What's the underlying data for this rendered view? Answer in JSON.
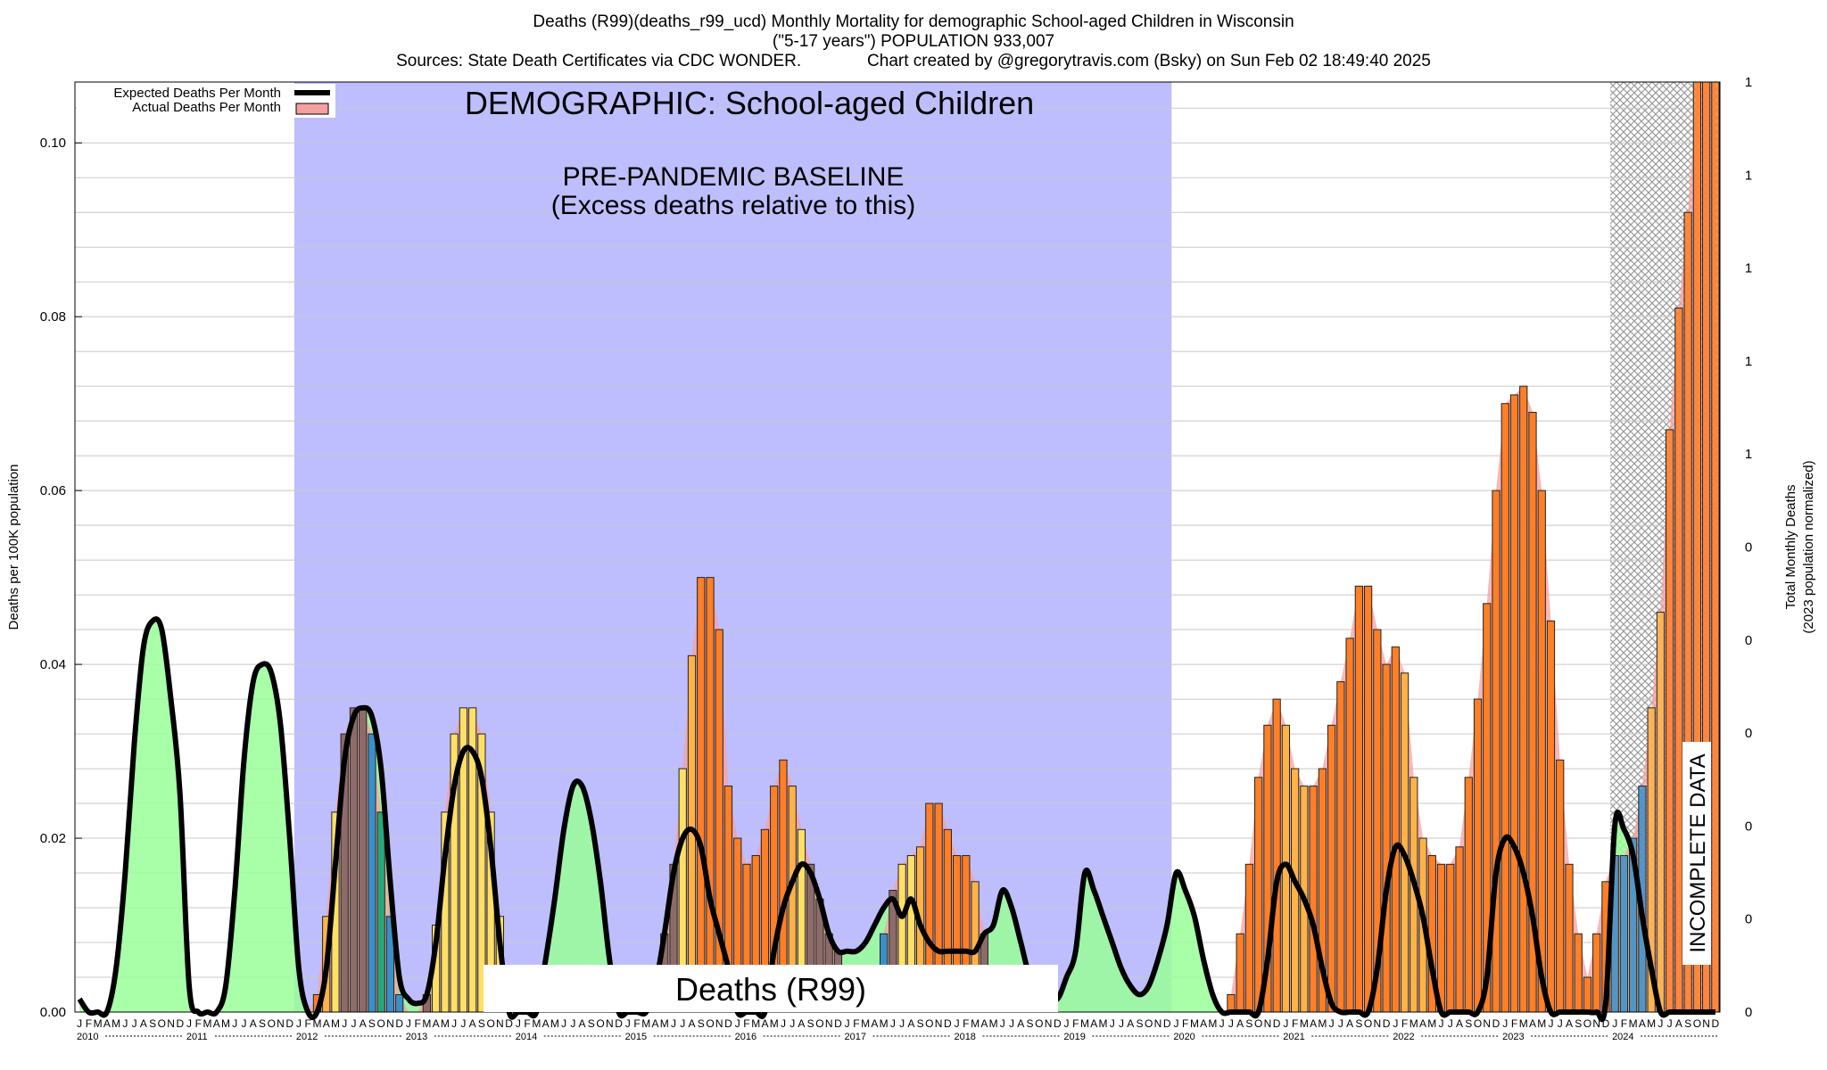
{
  "title": {
    "line1": "Deaths (R99)(deaths_r99_ucd) Monthly Mortality for demographic School-aged Children in Wisconsin",
    "line2": "(\"5-17 years\") POPULATION 933,007",
    "line3": "Sources: State Death Certificates via CDC WONDER.              Chart created by @gregorytravis.com (Bsky) on Sun Feb 02 18:49:40 2025"
  },
  "colors": {
    "baseline_band": "#bebeff",
    "green_fill": "#99ff99",
    "expected_line": "#000000",
    "actual_fill": "#f4a0a0",
    "hatch": "#9a9a9a",
    "bar_palette": [
      "#3b8fc9",
      "#2aa67a",
      "#ffe066",
      "#ffb347",
      "#ff7f27",
      "#8e6b6b",
      "#6e8b6e"
    ]
  },
  "chart_data": {
    "type": "area",
    "ylabel": "Deaths per 100K population",
    "y2label_line1": "Total Monthly Deaths",
    "y2label_line2": "(2023 population normalized)",
    "ylim": [
      0,
      0.107
    ],
    "yticks": [
      "0.00",
      "0.02",
      "0.04",
      "0.06",
      "0.08",
      "0.10"
    ],
    "y2ticks": [
      "0",
      "0",
      "0",
      "0",
      "0",
      "0",
      "1",
      "1",
      "1",
      "1",
      "1"
    ],
    "grid": true,
    "legend": {
      "placement": "top-left",
      "expected": "Expected Deaths Per Month",
      "actual": "Actual Deaths Per Month"
    },
    "baseline_label": "DEMOGRAPHIC: School-aged Children",
    "baseline_note1": "PRE-PANDEMIC BASELINE",
    "baseline_note2": "(Excess deaths relative to this)",
    "cause_label": "Deaths (R99)",
    "incomplete_label": "INCOMPLETE DATA",
    "baseline_range": [
      "2012-01",
      "2019-12"
    ],
    "incomplete_from": "2024-01",
    "month_letters": [
      "J",
      "F",
      "M",
      "A",
      "M",
      "J",
      "J",
      "A",
      "S",
      "O",
      "N",
      "D"
    ],
    "years": [
      "2010",
      "2011",
      "2012",
      "2013",
      "2014",
      "2015",
      "2016",
      "2017",
      "2018",
      "2019",
      "2020",
      "2021",
      "2022",
      "2023",
      "2024"
    ],
    "expected": [
      0.0015,
      0.0,
      0.0,
      0.0,
      0.005,
      0.016,
      0.031,
      0.042,
      0.045,
      0.044,
      0.036,
      0.025,
      0.003,
      0.0,
      0.0,
      0.0,
      0.003,
      0.014,
      0.029,
      0.038,
      0.04,
      0.039,
      0.033,
      0.02,
      0.005,
      0.0,
      0.0,
      0.005,
      0.017,
      0.029,
      0.034,
      0.035,
      0.034,
      0.028,
      0.015,
      0.004,
      0.0015,
      0.001,
      0.002,
      0.008,
      0.018,
      0.026,
      0.03,
      0.03,
      0.027,
      0.019,
      0.008,
      0.0,
      0.0,
      0.0,
      0.0,
      0.006,
      0.013,
      0.021,
      0.026,
      0.026,
      0.022,
      0.015,
      0.006,
      0.0,
      0.0,
      0.0,
      0.0,
      0.003,
      0.009,
      0.016,
      0.02,
      0.021,
      0.019,
      0.013,
      0.009,
      0.005,
      0.0,
      0.0,
      0.0,
      0.0,
      0.007,
      0.012,
      0.015,
      0.017,
      0.016,
      0.013,
      0.009,
      0.007,
      0.007,
      0.007,
      0.008,
      0.01,
      0.012,
      0.013,
      0.011,
      0.013,
      0.01,
      0.008,
      0.007,
      0.007,
      0.007,
      0.007,
      0.007,
      0.009,
      0.01,
      0.014,
      0.012,
      0.008,
      0.004,
      0.003,
      0.002,
      0.0015,
      0.004,
      0.007,
      0.016,
      0.014,
      0.011,
      0.008,
      0.005,
      0.003,
      0.002,
      0.003,
      0.006,
      0.01,
      0.016,
      0.014,
      0.011,
      0.006,
      0.002,
      0.0,
      0.0,
      0.0,
      0.0,
      0.0,
      0.006,
      0.015,
      0.017,
      0.015,
      0.013,
      0.01,
      0.005,
      0.001,
      0.0,
      0.0,
      0.0,
      0.0,
      0.005,
      0.014,
      0.019,
      0.018,
      0.015,
      0.011,
      0.005,
      0.0,
      0.0,
      0.0,
      0.0,
      0.0,
      0.004,
      0.016,
      0.02,
      0.019,
      0.016,
      0.011,
      0.004,
      0.0,
      0.0,
      0.0,
      0.0,
      0.0,
      0.0,
      0.001,
      0.0215,
      0.021,
      0.018,
      0.011,
      0.005,
      0.0,
      0.0,
      0.0,
      0.0,
      0.0,
      0.0,
      0.0
    ],
    "actual": [
      null,
      null,
      null,
      null,
      null,
      null,
      null,
      null,
      null,
      null,
      null,
      null,
      null,
      null,
      null,
      null,
      null,
      null,
      null,
      null,
      null,
      null,
      null,
      null,
      0.0,
      0.0,
      0.002,
      0.011,
      0.023,
      0.032,
      0.035,
      0.035,
      0.032,
      0.023,
      0.011,
      0.002,
      0.0,
      0.0,
      0.002,
      0.01,
      0.023,
      0.032,
      0.035,
      0.035,
      0.032,
      0.023,
      0.011,
      0.0,
      null,
      null,
      null,
      null,
      null,
      null,
      null,
      null,
      null,
      null,
      null,
      null,
      0.0,
      0.0,
      0.0,
      0.0,
      0.009,
      0.017,
      0.028,
      0.041,
      0.05,
      0.05,
      0.044,
      0.026,
      0.02,
      0.017,
      0.018,
      0.021,
      0.026,
      0.029,
      0.026,
      0.021,
      0.017,
      0.013,
      0.009,
      0.007,
      null,
      null,
      null,
      null,
      0.009,
      0.014,
      0.017,
      0.018,
      0.019,
      0.024,
      0.024,
      0.021,
      0.018,
      0.018,
      0.015,
      0.009,
      null,
      null,
      null,
      null,
      null,
      null,
      null,
      null,
      null,
      null,
      null,
      null,
      null,
      null,
      null,
      null,
      null,
      null,
      null,
      null,
      null,
      null,
      null,
      null,
      null,
      null,
      0.002,
      0.009,
      0.017,
      0.027,
      0.033,
      0.036,
      0.033,
      0.028,
      0.026,
      0.026,
      0.028,
      0.033,
      0.038,
      0.043,
      0.049,
      0.049,
      0.044,
      0.04,
      0.042,
      0.039,
      0.027,
      0.02,
      0.018,
      0.017,
      0.017,
      0.019,
      0.027,
      0.036,
      0.047,
      0.06,
      0.07,
      0.071,
      0.072,
      0.069,
      0.06,
      0.045,
      0.029,
      0.017,
      0.009,
      0.004,
      0.009,
      0.015,
      0.018,
      0.018,
      0.02,
      0.026,
      0.035,
      0.046,
      0.067,
      0.081,
      0.092,
      0.107,
      0.107,
      0.107
    ]
  }
}
